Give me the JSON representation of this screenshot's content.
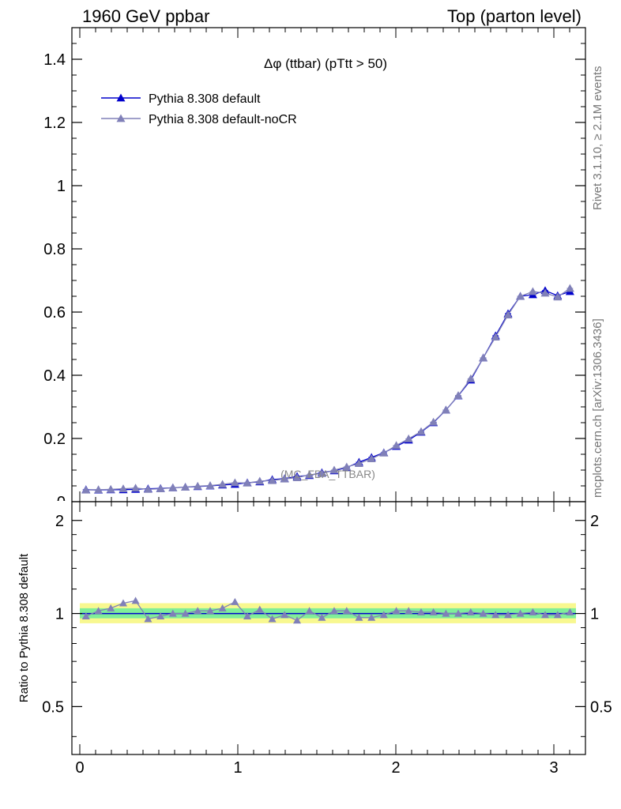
{
  "header": {
    "left": "1960 GeV ppbar",
    "right": "Top (parton level)"
  },
  "side_labels": {
    "rivet": "Rivet 3.1.10, ≥ 2.1M events",
    "mcplots": "mcplots.cern.ch [arXiv:1306.3436]"
  },
  "chart_data": [
    {
      "type": "line",
      "panel": "main",
      "title": "Δφ (ttbar) (pTtt > 50)",
      "watermark": "(MC_FBA_TTBAR)",
      "xlim": [
        -0.05,
        3.2
      ],
      "ylim": [
        0,
        1.5
      ],
      "yticks": [
        0.2,
        0.4,
        0.6,
        0.8,
        1,
        1.2,
        1.4
      ],
      "ytick_labels": [
        "0.2",
        "0.4",
        "0.6",
        "0.8",
        "1",
        "1.2",
        "1.4"
      ],
      "x": [
        0.039,
        0.118,
        0.196,
        0.275,
        0.353,
        0.432,
        0.511,
        0.589,
        0.668,
        0.746,
        0.825,
        0.903,
        0.982,
        1.06,
        1.139,
        1.218,
        1.296,
        1.375,
        1.453,
        1.532,
        1.61,
        1.689,
        1.767,
        1.846,
        1.924,
        2.003,
        2.081,
        2.16,
        2.238,
        2.317,
        2.395,
        2.474,
        2.553,
        2.631,
        2.71,
        2.788,
        2.867,
        2.945,
        3.024,
        3.102
      ],
      "legend_position": "top-left",
      "series": [
        {
          "name": "Pythia 8.308 default",
          "color": "#0000cc",
          "marker": "triangle",
          "values": [
            0.038,
            0.037,
            0.038,
            0.038,
            0.039,
            0.041,
            0.042,
            0.044,
            0.046,
            0.048,
            0.05,
            0.053,
            0.055,
            0.06,
            0.063,
            0.07,
            0.073,
            0.08,
            0.083,
            0.092,
            0.098,
            0.108,
            0.125,
            0.14,
            0.155,
            0.175,
            0.195,
            0.22,
            0.25,
            0.29,
            0.335,
            0.385,
            0.455,
            0.525,
            0.595,
            0.65,
            0.655,
            0.668,
            0.652,
            0.665
          ]
        },
        {
          "name": "Pythia 8.308 default-noCR",
          "color": "#8080b8",
          "marker": "triangle",
          "values": [
            0.037,
            0.038,
            0.039,
            0.041,
            0.043,
            0.039,
            0.041,
            0.044,
            0.046,
            0.049,
            0.051,
            0.055,
            0.06,
            0.059,
            0.065,
            0.067,
            0.072,
            0.076,
            0.085,
            0.089,
            0.1,
            0.11,
            0.121,
            0.136,
            0.154,
            0.178,
            0.199,
            0.222,
            0.252,
            0.29,
            0.336,
            0.389,
            0.455,
            0.521,
            0.591,
            0.65,
            0.665,
            0.66,
            0.648,
            0.675
          ]
        }
      ]
    },
    {
      "type": "line",
      "panel": "ratio",
      "ylabel": "Ratio to Pythia 8.308 default",
      "xlim": [
        -0.05,
        3.2
      ],
      "ylim": [
        0.35,
        2.3
      ],
      "ylog": true,
      "xticks": [
        0,
        1,
        2,
        3
      ],
      "xtick_labels": [
        "0",
        "1",
        "2",
        "3"
      ],
      "yticks": [
        0.5,
        1,
        2
      ],
      "ytick_labels": [
        "0.5",
        "1",
        "2"
      ],
      "band_color_inner": "#80ee99",
      "band_color_outer": "#f8f890",
      "reference_color": "#0000cc",
      "series": [
        {
          "name": "Pythia 8.308 default-noCR",
          "color": "#8080b8",
          "values": [
            0.98,
            1.02,
            1.04,
            1.08,
            1.1,
            0.96,
            0.98,
            1.0,
            1.0,
            1.02,
            1.02,
            1.04,
            1.09,
            0.98,
            1.03,
            0.96,
            0.99,
            0.95,
            1.02,
            0.97,
            1.02,
            1.02,
            0.97,
            0.97,
            0.99,
            1.02,
            1.02,
            1.01,
            1.01,
            1.0,
            1.0,
            1.01,
            1.0,
            0.99,
            0.99,
            1.0,
            1.01,
            0.99,
            0.99,
            1.01
          ]
        }
      ]
    }
  ]
}
